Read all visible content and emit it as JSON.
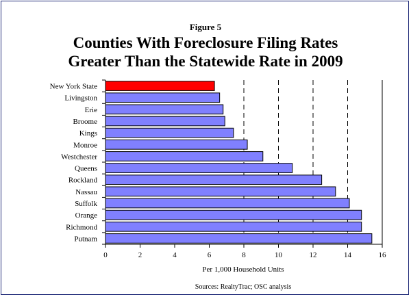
{
  "figure_label": "Figure 5",
  "title_line1": "Counties With Foreclosure Filing Rates",
  "title_line2": "Greater Than the Statewide Rate in 2009",
  "source": "Sources: RealtyTrac; OSC analysis",
  "colors": {
    "highlight": "#ff0000",
    "bar": "#8080ff",
    "frame": "#1f2a78"
  },
  "chart_data": {
    "type": "bar",
    "orientation": "horizontal",
    "categories": [
      "New York State",
      "Livingston",
      "Erie",
      "Broome",
      "Kings",
      "Monroe",
      "Westchester",
      "Queens",
      "Rockland",
      "Nassau",
      "Suffolk",
      "Orange",
      "Richmond",
      "Putnam"
    ],
    "values": [
      6.3,
      6.6,
      6.8,
      6.9,
      7.4,
      8.2,
      9.1,
      10.8,
      12.5,
      13.3,
      14.1,
      14.8,
      14.8,
      15.4
    ],
    "highlight_category": "New York State",
    "xlabel": "Per 1,000 Household Units",
    "ylabel": "",
    "xlim": [
      0,
      16
    ],
    "xticks": [
      0,
      2,
      4,
      6,
      8,
      10,
      12,
      14,
      16
    ],
    "grid": "vertical dashed"
  }
}
